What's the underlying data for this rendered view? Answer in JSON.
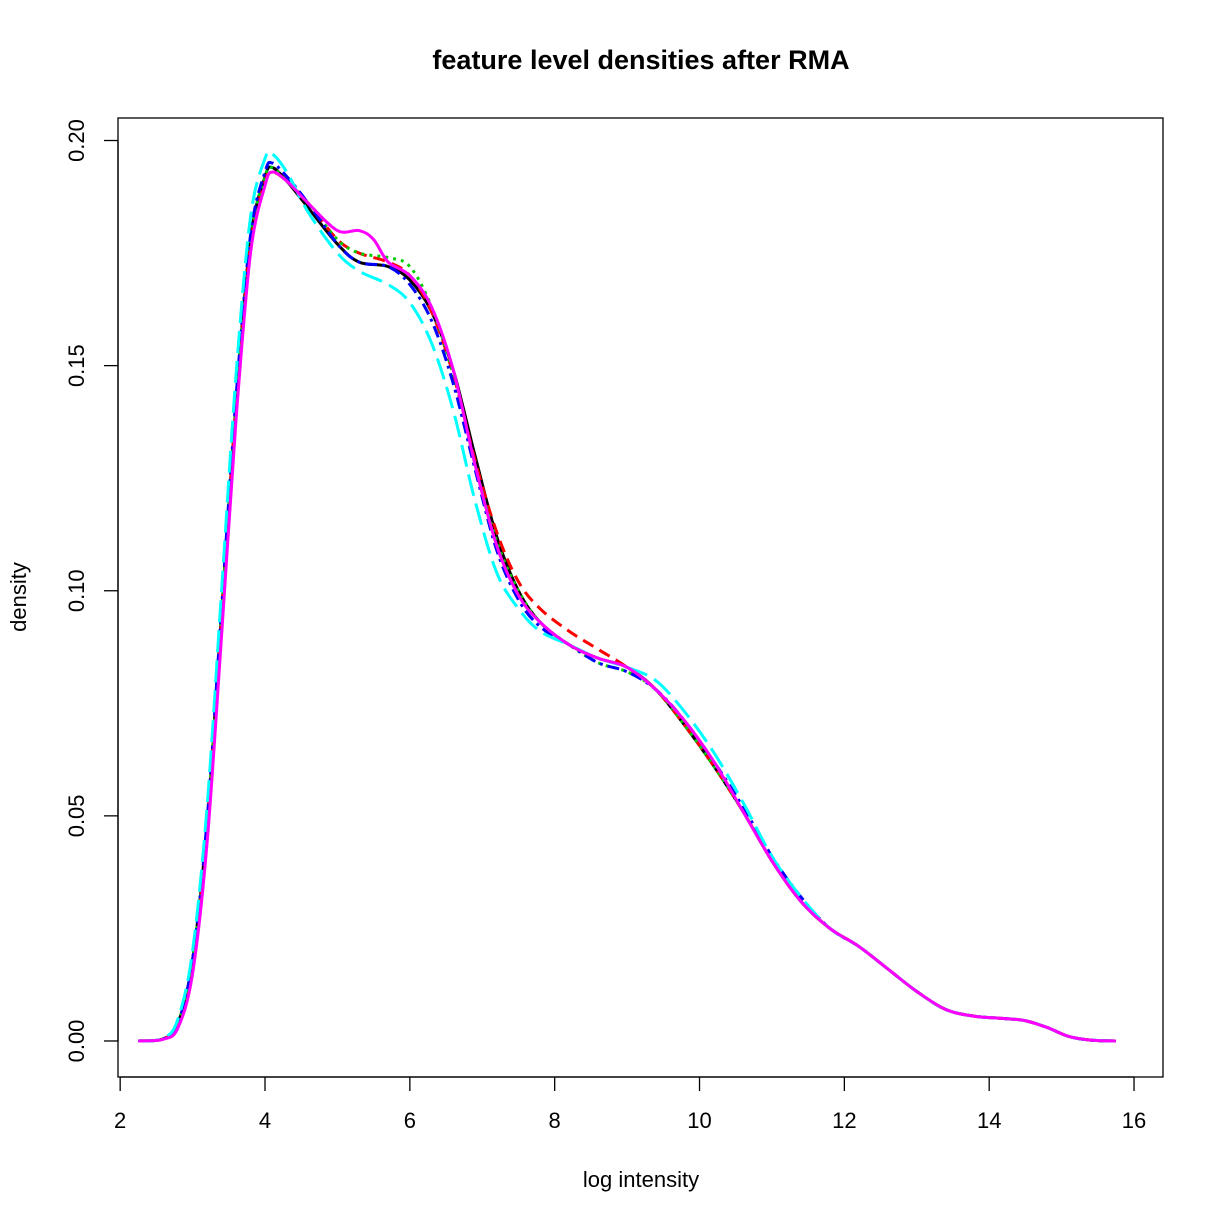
{
  "chart_data": {
    "type": "line",
    "title": "feature level densities after RMA",
    "xlabel": "log intensity",
    "ylabel": "density",
    "xlim": [
      1.97,
      16.4
    ],
    "ylim": [
      -0.008,
      0.205
    ],
    "x_ticks": [
      2,
      4,
      6,
      8,
      10,
      12,
      14,
      16
    ],
    "x_tick_labels": [
      "2",
      "4",
      "6",
      "8",
      "10",
      "12",
      "14",
      "16"
    ],
    "y_ticks": [
      0.0,
      0.05,
      0.1,
      0.15,
      0.2
    ],
    "y_tick_labels": [
      "0.00",
      "0.05",
      "0.10",
      "0.15",
      "0.20"
    ],
    "grid": false,
    "legend": "none",
    "series": [
      {
        "color": "#000000",
        "dash": "solid",
        "points": [
          [
            2.25,
            0.0
          ],
          [
            2.6,
            0.0005
          ],
          [
            2.8,
            0.004
          ],
          [
            3.0,
            0.018
          ],
          [
            3.2,
            0.048
          ],
          [
            3.4,
            0.095
          ],
          [
            3.6,
            0.142
          ],
          [
            3.8,
            0.178
          ],
          [
            4.0,
            0.192
          ],
          [
            4.1,
            0.194
          ],
          [
            4.3,
            0.191
          ],
          [
            4.6,
            0.185
          ],
          [
            5.0,
            0.177
          ],
          [
            5.3,
            0.173
          ],
          [
            5.7,
            0.172
          ],
          [
            6.0,
            0.169
          ],
          [
            6.3,
            0.162
          ],
          [
            6.6,
            0.149
          ],
          [
            6.9,
            0.13
          ],
          [
            7.2,
            0.112
          ],
          [
            7.5,
            0.1
          ],
          [
            7.8,
            0.093
          ],
          [
            8.2,
            0.088
          ],
          [
            8.6,
            0.085
          ],
          [
            9.0,
            0.083
          ],
          [
            9.4,
            0.078
          ],
          [
            9.8,
            0.07
          ],
          [
            10.2,
            0.061
          ],
          [
            10.6,
            0.051
          ],
          [
            11.0,
            0.04
          ],
          [
            11.4,
            0.031
          ],
          [
            11.8,
            0.025
          ],
          [
            12.2,
            0.021
          ],
          [
            12.6,
            0.016
          ],
          [
            13.0,
            0.011
          ],
          [
            13.4,
            0.007
          ],
          [
            13.8,
            0.0055
          ],
          [
            14.2,
            0.005
          ],
          [
            14.5,
            0.0045
          ],
          [
            14.8,
            0.003
          ],
          [
            15.1,
            0.001
          ],
          [
            15.4,
            0.0002
          ],
          [
            15.75,
            0.0
          ]
        ]
      },
      {
        "color": "#ff0000",
        "dash": "dashed",
        "points": [
          [
            2.25,
            0.0
          ],
          [
            2.6,
            0.0005
          ],
          [
            2.8,
            0.004
          ],
          [
            3.0,
            0.017
          ],
          [
            3.2,
            0.047
          ],
          [
            3.4,
            0.094
          ],
          [
            3.6,
            0.141
          ],
          [
            3.8,
            0.177
          ],
          [
            4.0,
            0.191
          ],
          [
            4.1,
            0.193
          ],
          [
            4.3,
            0.191
          ],
          [
            4.6,
            0.186
          ],
          [
            5.0,
            0.178
          ],
          [
            5.3,
            0.175
          ],
          [
            5.7,
            0.173
          ],
          [
            6.0,
            0.17
          ],
          [
            6.3,
            0.162
          ],
          [
            6.6,
            0.148
          ],
          [
            6.9,
            0.129
          ],
          [
            7.2,
            0.113
          ],
          [
            7.5,
            0.102
          ],
          [
            7.8,
            0.096
          ],
          [
            8.2,
            0.091
          ],
          [
            8.6,
            0.087
          ],
          [
            9.0,
            0.083
          ],
          [
            9.4,
            0.078
          ],
          [
            9.8,
            0.07
          ],
          [
            10.2,
            0.061
          ],
          [
            10.6,
            0.051
          ],
          [
            11.0,
            0.04
          ],
          [
            11.4,
            0.031
          ],
          [
            11.8,
            0.025
          ],
          [
            12.2,
            0.021
          ],
          [
            12.6,
            0.016
          ],
          [
            13.0,
            0.011
          ],
          [
            13.4,
            0.007
          ],
          [
            13.8,
            0.0055
          ],
          [
            14.2,
            0.005
          ],
          [
            14.5,
            0.0045
          ],
          [
            14.8,
            0.003
          ],
          [
            15.1,
            0.001
          ],
          [
            15.4,
            0.0002
          ],
          [
            15.75,
            0.0
          ]
        ]
      },
      {
        "color": "#00cd00",
        "dash": "dotted",
        "points": [
          [
            2.25,
            0.0
          ],
          [
            2.6,
            0.0005
          ],
          [
            2.8,
            0.004
          ],
          [
            3.0,
            0.018
          ],
          [
            3.2,
            0.048
          ],
          [
            3.4,
            0.095
          ],
          [
            3.6,
            0.142
          ],
          [
            3.8,
            0.178
          ],
          [
            4.0,
            0.192
          ],
          [
            4.1,
            0.194
          ],
          [
            4.3,
            0.191
          ],
          [
            4.6,
            0.186
          ],
          [
            5.0,
            0.178
          ],
          [
            5.3,
            0.175
          ],
          [
            5.7,
            0.174
          ],
          [
            6.0,
            0.172
          ],
          [
            6.3,
            0.163
          ],
          [
            6.6,
            0.148
          ],
          [
            6.9,
            0.128
          ],
          [
            7.2,
            0.111
          ],
          [
            7.5,
            0.1
          ],
          [
            7.8,
            0.093
          ],
          [
            8.2,
            0.088
          ],
          [
            8.6,
            0.084
          ],
          [
            9.0,
            0.082
          ],
          [
            9.4,
            0.078
          ],
          [
            9.8,
            0.07
          ],
          [
            10.2,
            0.061
          ],
          [
            10.6,
            0.051
          ],
          [
            11.0,
            0.04
          ],
          [
            11.4,
            0.031
          ],
          [
            11.8,
            0.025
          ],
          [
            12.2,
            0.021
          ],
          [
            12.6,
            0.016
          ],
          [
            13.0,
            0.011
          ],
          [
            13.4,
            0.007
          ],
          [
            13.8,
            0.0055
          ],
          [
            14.2,
            0.005
          ],
          [
            14.5,
            0.0045
          ],
          [
            14.8,
            0.003
          ],
          [
            15.1,
            0.001
          ],
          [
            15.4,
            0.0002
          ],
          [
            15.75,
            0.0
          ]
        ]
      },
      {
        "color": "#0000ff",
        "dash": "dotdash",
        "points": [
          [
            2.25,
            0.0
          ],
          [
            2.6,
            0.0005
          ],
          [
            2.8,
            0.004
          ],
          [
            3.0,
            0.018
          ],
          [
            3.2,
            0.049
          ],
          [
            3.4,
            0.096
          ],
          [
            3.6,
            0.143
          ],
          [
            3.8,
            0.179
          ],
          [
            4.0,
            0.193
          ],
          [
            4.1,
            0.195
          ],
          [
            4.3,
            0.192
          ],
          [
            4.6,
            0.186
          ],
          [
            5.0,
            0.177
          ],
          [
            5.3,
            0.173
          ],
          [
            5.7,
            0.172
          ],
          [
            6.0,
            0.168
          ],
          [
            6.3,
            0.16
          ],
          [
            6.6,
            0.146
          ],
          [
            6.9,
            0.127
          ],
          [
            7.2,
            0.109
          ],
          [
            7.5,
            0.098
          ],
          [
            7.8,
            0.092
          ],
          [
            8.2,
            0.088
          ],
          [
            8.6,
            0.084
          ],
          [
            9.0,
            0.082
          ],
          [
            9.4,
            0.078
          ],
          [
            9.8,
            0.071
          ],
          [
            10.2,
            0.062
          ],
          [
            10.6,
            0.052
          ],
          [
            11.0,
            0.041
          ],
          [
            11.4,
            0.032
          ],
          [
            11.8,
            0.025
          ],
          [
            12.2,
            0.021
          ],
          [
            12.6,
            0.016
          ],
          [
            13.0,
            0.011
          ],
          [
            13.4,
            0.007
          ],
          [
            13.8,
            0.0055
          ],
          [
            14.2,
            0.005
          ],
          [
            14.5,
            0.0045
          ],
          [
            14.8,
            0.003
          ],
          [
            15.1,
            0.001
          ],
          [
            15.4,
            0.0002
          ],
          [
            15.75,
            0.0
          ]
        ]
      },
      {
        "color": "#00ffff",
        "dash": "longdash",
        "points": [
          [
            2.25,
            0.0
          ],
          [
            2.6,
            0.0006
          ],
          [
            2.8,
            0.005
          ],
          [
            3.0,
            0.02
          ],
          [
            3.2,
            0.052
          ],
          [
            3.4,
            0.1
          ],
          [
            3.6,
            0.148
          ],
          [
            3.8,
            0.183
          ],
          [
            4.0,
            0.196
          ],
          [
            4.1,
            0.197
          ],
          [
            4.3,
            0.193
          ],
          [
            4.6,
            0.184
          ],
          [
            5.0,
            0.175
          ],
          [
            5.3,
            0.171
          ],
          [
            5.7,
            0.168
          ],
          [
            6.0,
            0.164
          ],
          [
            6.3,
            0.155
          ],
          [
            6.6,
            0.14
          ],
          [
            6.9,
            0.12
          ],
          [
            7.2,
            0.104
          ],
          [
            7.5,
            0.096
          ],
          [
            7.8,
            0.091
          ],
          [
            8.2,
            0.088
          ],
          [
            8.6,
            0.085
          ],
          [
            9.0,
            0.083
          ],
          [
            9.4,
            0.08
          ],
          [
            9.8,
            0.073
          ],
          [
            10.2,
            0.064
          ],
          [
            10.6,
            0.053
          ],
          [
            11.0,
            0.041
          ],
          [
            11.4,
            0.032
          ],
          [
            11.8,
            0.025
          ],
          [
            12.2,
            0.021
          ],
          [
            12.6,
            0.016
          ],
          [
            13.0,
            0.011
          ],
          [
            13.4,
            0.007
          ],
          [
            13.8,
            0.0055
          ],
          [
            14.2,
            0.005
          ],
          [
            14.5,
            0.0045
          ],
          [
            14.8,
            0.003
          ],
          [
            15.1,
            0.001
          ],
          [
            15.4,
            0.0002
          ],
          [
            15.75,
            0.0
          ]
        ]
      },
      {
        "color": "#ff00ff",
        "dash": "solid",
        "points": [
          [
            2.25,
            0.0
          ],
          [
            2.6,
            0.0004
          ],
          [
            2.8,
            0.003
          ],
          [
            3.0,
            0.015
          ],
          [
            3.2,
            0.044
          ],
          [
            3.4,
            0.09
          ],
          [
            3.6,
            0.138
          ],
          [
            3.8,
            0.175
          ],
          [
            4.0,
            0.19
          ],
          [
            4.1,
            0.193
          ],
          [
            4.3,
            0.191
          ],
          [
            4.6,
            0.186
          ],
          [
            5.0,
            0.18
          ],
          [
            5.3,
            0.18
          ],
          [
            5.5,
            0.178
          ],
          [
            5.7,
            0.173
          ],
          [
            6.0,
            0.17
          ],
          [
            6.3,
            0.163
          ],
          [
            6.6,
            0.149
          ],
          [
            6.9,
            0.128
          ],
          [
            7.2,
            0.11
          ],
          [
            7.5,
            0.099
          ],
          [
            7.8,
            0.093
          ],
          [
            8.2,
            0.088
          ],
          [
            8.6,
            0.085
          ],
          [
            9.0,
            0.083
          ],
          [
            9.4,
            0.078
          ],
          [
            9.8,
            0.071
          ],
          [
            10.2,
            0.062
          ],
          [
            10.6,
            0.051
          ],
          [
            11.0,
            0.04
          ],
          [
            11.4,
            0.031
          ],
          [
            11.8,
            0.025
          ],
          [
            12.2,
            0.021
          ],
          [
            12.6,
            0.016
          ],
          [
            13.0,
            0.011
          ],
          [
            13.4,
            0.007
          ],
          [
            13.8,
            0.0055
          ],
          [
            14.2,
            0.005
          ],
          [
            14.5,
            0.0045
          ],
          [
            14.8,
            0.003
          ],
          [
            15.1,
            0.001
          ],
          [
            15.4,
            0.0002
          ],
          [
            15.75,
            0.0
          ]
        ]
      }
    ]
  }
}
